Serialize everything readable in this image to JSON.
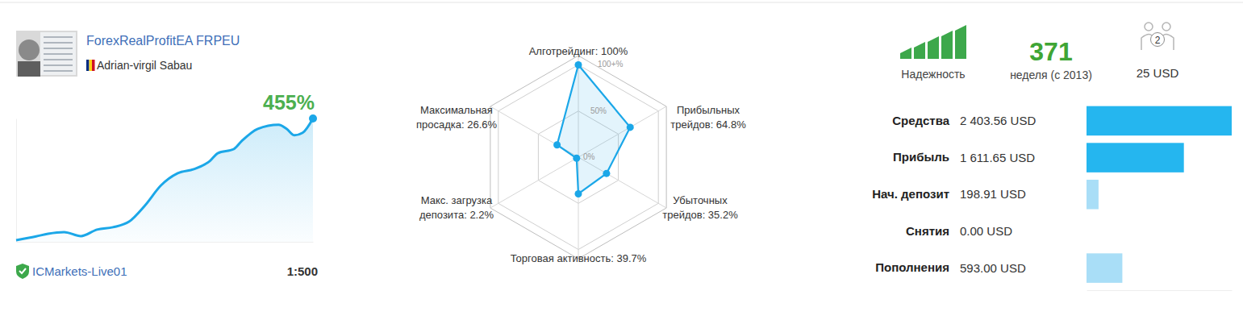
{
  "header": {
    "title": "ForexRealProfitEA FRPEU",
    "author": "Adrian-virgil Sabau",
    "server": "ICMarkets-Live01",
    "leverage": "1:500"
  },
  "stats": {
    "reliability_label": "Надежность",
    "weeks": 371,
    "weeks_label": "неделя (с 2013)",
    "subscribers": 2,
    "price": "25 USD"
  },
  "chart_data": [
    {
      "type": "line",
      "annotation": "455%",
      "x": [
        0,
        25,
        40,
        60,
        81,
        101,
        121,
        141,
        161,
        181,
        202,
        222,
        242,
        252,
        272,
        282,
        302,
        328,
        338,
        348,
        358,
        371
      ],
      "values": [
        6,
        20,
        30,
        36,
        21,
        45,
        54,
        74,
        134,
        208,
        253,
        268,
        298,
        327,
        342,
        372,
        417,
        432,
        417,
        393,
        402,
        455
      ],
      "xlim": [
        0,
        371
      ],
      "ylim": [
        0,
        455
      ],
      "tick_labels": false,
      "color": "#1ba7e8"
    },
    {
      "type": "radar",
      "categories": [
        "Алготрейдинг: 100%",
        "Прибыльных\nтрейдов: 64.8%",
        "Убыточных\nтрейдов: 35.2%",
        "Торговая активность: 39.7%",
        "Макс. загрузка\nдепозита: 2.2%",
        "Максимальная\nпросадка: 26.6%"
      ],
      "values": [
        100,
        64.8,
        35.2,
        39.7,
        2.2,
        26.6
      ],
      "ylim": [
        0,
        110
      ],
      "yticks": [
        {
          "value": 0,
          "label": "0%"
        },
        {
          "value": 50,
          "label": "50%"
        },
        {
          "value": 100,
          "label": "100+%"
        }
      ],
      "grid": true,
      "color": "#1ba7e8"
    },
    {
      "type": "bar",
      "orientation": "horizontal",
      "categories": [
        "Средства",
        "Прибыль",
        "Нач. депозит",
        "Снятия",
        "Пополнения"
      ],
      "values": [
        2403.56,
        1611.65,
        198.91,
        0,
        593.0
      ],
      "value_labels": [
        "2 403.56 USD",
        "1 611.65 USD",
        "198.91 USD",
        "0.00 USD",
        "593.00 USD"
      ],
      "xlim": [
        0,
        2403.56
      ],
      "data_labels": true,
      "tick_labels": "y",
      "colors": [
        "#25b6ef",
        "#25b6ef",
        "#a9def7",
        "#a9def7",
        "#a9def7"
      ]
    }
  ]
}
